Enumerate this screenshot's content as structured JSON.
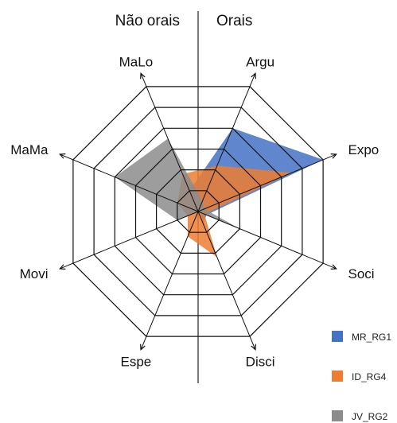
{
  "chart_data": {
    "type": "radar",
    "header": {
      "left": "Não orais",
      "right": "Orais"
    },
    "axes": [
      "Expo",
      "Argu",
      "MaLo",
      "MaMa",
      "Movi",
      "Espe",
      "Disci",
      "Soci"
    ],
    "levels": 6,
    "max": 6,
    "series": [
      {
        "name": "MR_RG1",
        "color": "#4472c4",
        "values": [
          6,
          4,
          1,
          0.3,
          0,
          0,
          0.6,
          0.4
        ]
      },
      {
        "name": "ID_RG4",
        "color": "#ed7d31",
        "values": [
          4.5,
          2.2,
          1.8,
          1,
          0.5,
          1.2,
          2.2,
          0.3
        ]
      },
      {
        "name": "JV_RG2",
        "color": "#8c8c8c",
        "values": [
          0.3,
          0.5,
          3.5,
          4,
          1,
          0,
          0,
          2
        ]
      }
    ],
    "legend_position": "bottom-right"
  }
}
